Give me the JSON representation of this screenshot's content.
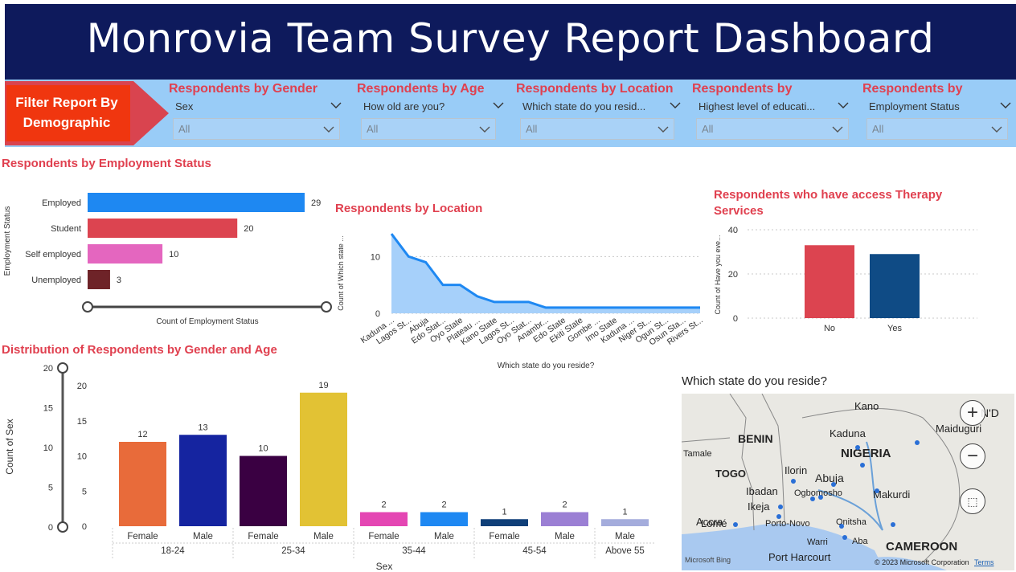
{
  "header": {
    "title": "Monrovia Team Survey Report Dashboard"
  },
  "filter": {
    "label": "Filter Report By Demographic",
    "slicers": [
      {
        "title": "Respondents by Gender",
        "field": "Sex",
        "value": "All"
      },
      {
        "title": "Respondents by Age",
        "field": "How old are you?",
        "value": "All"
      },
      {
        "title": "Respondents by Location",
        "field": "Which state do you resid...",
        "value": "All"
      },
      {
        "title": "Respondents by",
        "field": "Highest level of educati...",
        "value": "All"
      },
      {
        "title": "Respondents by",
        "field": "Employment Status",
        "value": "All"
      }
    ]
  },
  "chart_data": [
    {
      "type": "bar",
      "orientation": "horizontal",
      "title": "Respondents by Employment Status",
      "xlabel": "Count of Employment Status",
      "ylabel": "Employment Status",
      "categories": [
        "Employed",
        "Student",
        "Self employed",
        "Unemployed"
      ],
      "values": [
        29,
        20,
        10,
        3
      ],
      "colors": [
        "#1e88f2",
        "#dc4450",
        "#e466bf",
        "#6e2328"
      ],
      "xlim": [
        0,
        29
      ]
    },
    {
      "type": "area",
      "title": "Respondents by Location",
      "xlabel": "Which state do you reside?",
      "ylabel": "Count of Which state ...",
      "categories": [
        "Kaduna ...",
        "Lagos St...",
        "Abuja",
        "Edo Stat...",
        "Oyo State",
        "Plateau ...",
        "Kano State",
        "Lagos St...",
        "Oyo Stat...",
        "Anambr...",
        "Edo State",
        "Ekiti State",
        "Gombe ...",
        "Imo State",
        "Kaduna ...",
        "Niger St...",
        "Ogun St...",
        "Osun Sta...",
        "Rivers St..."
      ],
      "values": [
        14,
        10,
        9,
        5,
        5,
        3,
        2,
        2,
        2,
        1,
        1,
        1,
        1,
        1,
        1,
        1,
        1,
        1,
        1
      ],
      "yticks": [
        0,
        10
      ],
      "ylim": [
        0,
        15
      ],
      "color": "#1e88f2"
    },
    {
      "type": "bar",
      "title": "Respondents who have access Therapy Services",
      "ylabel": "Count of Have you eve...",
      "categories": [
        "No",
        "Yes"
      ],
      "values": [
        33,
        29
      ],
      "colors": [
        "#dc4450",
        "#0f4b85"
      ],
      "yticks": [
        0,
        20,
        40
      ],
      "ylim": [
        0,
        40
      ]
    },
    {
      "type": "bar",
      "title": "Distribution of Respondents by Gender and Age",
      "xlabel": "Sex",
      "ylabel": "Count of Sex",
      "groups": [
        {
          "label": "18-24",
          "bars": [
            {
              "label": "Female",
              "value": 12,
              "color": "#e86b3a"
            },
            {
              "label": "Male",
              "value": 13,
              "color": "#1524a0"
            }
          ]
        },
        {
          "label": "25-34",
          "bars": [
            {
              "label": "Female",
              "value": 10,
              "color": "#3a0042"
            },
            {
              "label": "Male",
              "value": 19,
              "color": "#e2c234"
            }
          ]
        },
        {
          "label": "35-44",
          "bars": [
            {
              "label": "Female",
              "value": 2,
              "color": "#e446b3"
            },
            {
              "label": "Male",
              "value": 2,
              "color": "#1e88f2"
            }
          ]
        },
        {
          "label": "45-54",
          "bars": [
            {
              "label": "Female",
              "value": 1,
              "color": "#0f3f78"
            },
            {
              "label": "Male",
              "value": 2,
              "color": "#9b7fd4"
            }
          ]
        },
        {
          "label": "Above 55",
          "bars": [
            {
              "label": "Male",
              "value": 1,
              "color": "#a4acdc"
            }
          ]
        }
      ],
      "yticks": [
        0,
        5,
        10,
        15,
        20
      ],
      "ylim": [
        0,
        20
      ],
      "slider_ticks": [
        0,
        5,
        10,
        15,
        20
      ]
    }
  ],
  "map": {
    "title": "Which state do you reside?",
    "labels": [
      "Kano",
      "N'D",
      "Maiduguri",
      "BENIN",
      "Kaduna",
      "NIGERIA",
      "Tamale",
      "TOGO",
      "Ilorin",
      "Abuja",
      "Accra",
      "Ibadan",
      "Ogbomosho",
      "Makurdi",
      "Ikeja",
      "Lomé",
      "Porto-Novo",
      "Onitsha",
      "Warri",
      "Aba",
      "Port Harcourt",
      "CAMEROON"
    ],
    "attribution": "© 2023 Microsoft Corporation",
    "terms": "Terms",
    "brand": "Microsoft Bing",
    "controls": [
      "zoom-in",
      "zoom-out",
      "select"
    ]
  }
}
